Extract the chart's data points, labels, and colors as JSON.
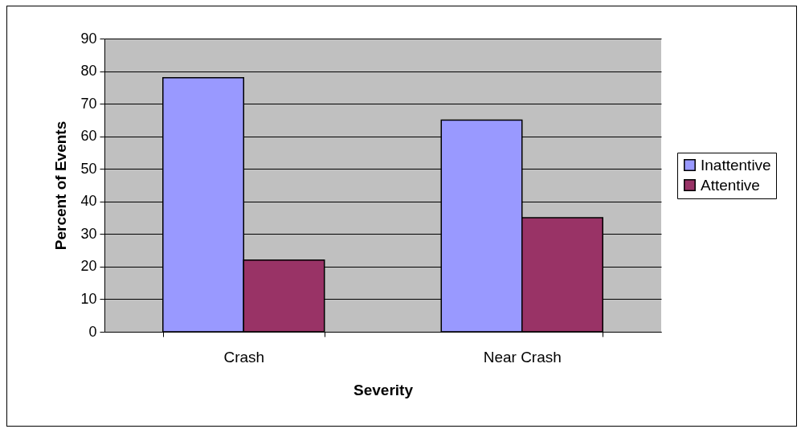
{
  "chart_data": {
    "type": "bar",
    "xlabel": "Severity",
    "ylabel": "Percent of Events",
    "categories": [
      "Crash",
      "Near Crash"
    ],
    "series": [
      {
        "name": "Inattentive",
        "color": "#9999ff",
        "values": [
          78,
          65
        ]
      },
      {
        "name": "Attentive",
        "color": "#993366",
        "values": [
          22,
          35
        ]
      }
    ],
    "ylim": [
      0,
      90
    ],
    "yticks": [
      0,
      10,
      20,
      30,
      40,
      50,
      60,
      70,
      80,
      90
    ],
    "grid": "y",
    "legend": "right"
  }
}
